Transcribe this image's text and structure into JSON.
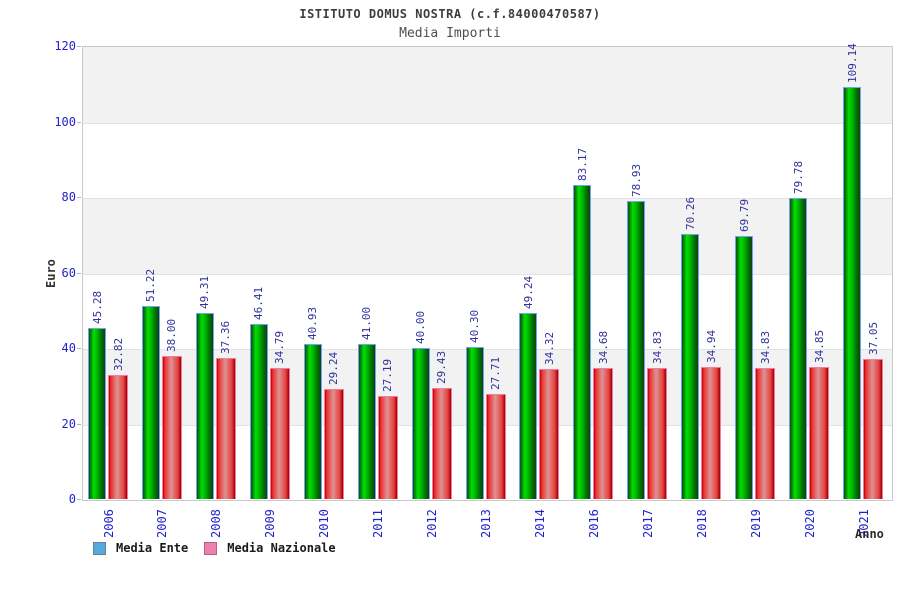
{
  "title": "ISTITUTO DOMUS NOSTRA (c.f.84000470587)",
  "subtitle": "Media Importi",
  "axes": {
    "y_label": "Euro",
    "x_label": "Anno",
    "y_ticks": [
      "0",
      "20",
      "40",
      "60",
      "80",
      "100",
      "120"
    ]
  },
  "legend": {
    "items": [
      {
        "label": "Media Ente",
        "swatch_fill": "#55a9dd",
        "swatch_border": "#6b7f96"
      },
      {
        "label": "Media Nazionale",
        "swatch_fill": "#ef7fae",
        "swatch_border": "#b85f85"
      }
    ]
  },
  "colors": {
    "tick_label": "#2323cc",
    "year_label": "#2323cc",
    "value_label": "#32329b",
    "band_gray": "#f2f2f2",
    "band_white": "#ffffff",
    "plot_border": "#c9c9c9",
    "gridline": "#e2e2e2",
    "tick_mark": "#b5b5b5",
    "green_gradient": [
      "#0e4d0e",
      "#00e000",
      "#00b400",
      "#007300",
      "#123f12"
    ],
    "green_outline": "#6ea3f5",
    "red_gradient": [
      "#b50000",
      "#ee2e2e",
      "#dc9393",
      "#e84040",
      "#990000"
    ],
    "red_outline": "#f07ca6"
  },
  "chart_data": {
    "type": "bar",
    "title": "ISTITUTO DOMUS NOSTRA (c.f.84000470587)",
    "subtitle": "Media Importi",
    "xlabel": "Anno",
    "ylabel": "Euro",
    "ylim": [
      0,
      120
    ],
    "y_tick_step": 20,
    "grid": "alternating-horizontal-bands",
    "legend_position": "bottom-left",
    "value_labels": "rotated-90-above-bars",
    "categories": [
      "2006",
      "2007",
      "2008",
      "2009",
      "2010",
      "2011",
      "2012",
      "2013",
      "2014",
      "2016",
      "2017",
      "2018",
      "2019",
      "2020",
      "2021"
    ],
    "series": [
      {
        "name": "Media Ente",
        "values": [
          45.28,
          51.22,
          49.31,
          46.41,
          40.93,
          41.0,
          40.0,
          40.3,
          49.24,
          83.17,
          78.93,
          70.26,
          69.79,
          79.78,
          109.14
        ]
      },
      {
        "name": "Media Nazionale",
        "values": [
          32.82,
          38.0,
          37.36,
          34.79,
          29.24,
          27.19,
          29.43,
          27.71,
          34.32,
          34.68,
          34.83,
          34.94,
          34.83,
          34.85,
          37.05
        ]
      }
    ]
  }
}
